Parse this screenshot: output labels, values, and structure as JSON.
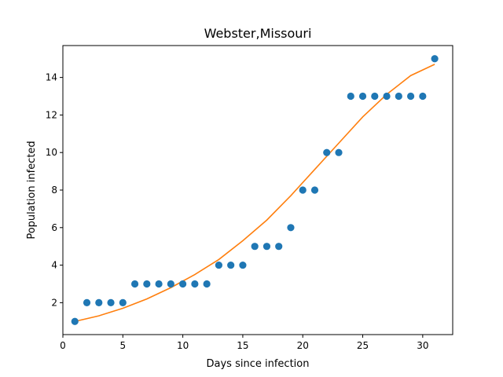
{
  "chart_data": {
    "type": "scatter",
    "title": "Webster,Missouri",
    "xlabel": "Days since infection",
    "ylabel": "Population infected",
    "xlim": [
      0,
      32.5
    ],
    "ylim": [
      0.3,
      15.7
    ],
    "xticks": [
      0,
      5,
      10,
      15,
      20,
      25,
      30
    ],
    "yticks": [
      2,
      4,
      6,
      8,
      10,
      12,
      14
    ],
    "grid": false,
    "series": [
      {
        "kind": "scatter",
        "color": "#1f77b4",
        "x": [
          1,
          2,
          3,
          4,
          5,
          6,
          7,
          8,
          9,
          10,
          11,
          12,
          13,
          14,
          15,
          16,
          17,
          18,
          19,
          20,
          21,
          22,
          23,
          24,
          25,
          26,
          27,
          28,
          29,
          30,
          31
        ],
        "y": [
          1,
          2,
          2,
          2,
          2,
          3,
          3,
          3,
          3,
          3,
          3,
          3,
          4,
          4,
          4,
          5,
          5,
          5,
          6,
          8,
          8,
          10,
          10,
          13,
          13,
          13,
          13,
          13,
          13,
          13,
          15
        ]
      },
      {
        "kind": "line",
        "color": "#ff7f0e",
        "x": [
          1,
          3,
          5,
          7,
          9,
          11,
          13,
          15,
          17,
          19,
          21,
          23,
          25,
          27,
          29,
          31
        ],
        "y": [
          1.0,
          1.3,
          1.7,
          2.2,
          2.8,
          3.5,
          4.3,
          5.3,
          6.4,
          7.7,
          9.1,
          10.5,
          11.9,
          13.1,
          14.1,
          14.7
        ]
      }
    ]
  }
}
